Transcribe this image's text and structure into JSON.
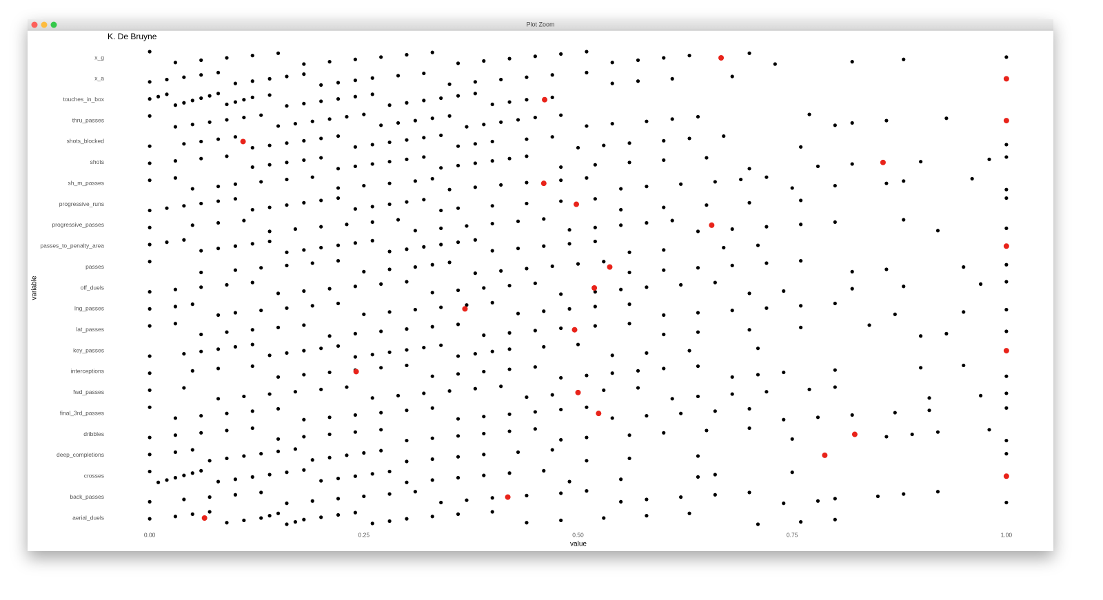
{
  "window_title": "Plot Zoom",
  "chart_data": {
    "type": "strip",
    "title": "K. De Bruyne",
    "x_label": "value",
    "y_label": "variable",
    "xlim": [
      -0.05,
      1.05
    ],
    "xticks": [
      {
        "value": 0,
        "label": "0.00"
      },
      {
        "value": 0.25,
        "label": "0.25"
      },
      {
        "value": 0.5,
        "label": "0.50"
      },
      {
        "value": 0.75,
        "label": "0.75"
      },
      {
        "value": 1,
        "label": "1.00"
      }
    ],
    "grid": false,
    "categories": [
      "x_g",
      "x_a",
      "touches_in_box",
      "thru_passes",
      "shots_blocked",
      "shots",
      "sh_m_passes",
      "progressive_runs",
      "progressive_passes",
      "passes_to_penalty_area",
      "passes",
      "off_duels",
      "lng_passes",
      "lat_passes",
      "key_passes",
      "interceptions",
      "fwd_passes",
      "final_3rd_passes",
      "dribbles",
      "deep_completions",
      "crosses",
      "back_passes",
      "aerial_duels"
    ],
    "population": {
      "color": "#000000",
      "values": [
        [
          0,
          0.03,
          0.06,
          0.09,
          0.12,
          0.15,
          0.18,
          0.21,
          0.24,
          0.27,
          0.3,
          0.33,
          0.36,
          0.39,
          0.42,
          0.45,
          0.48,
          0.51,
          0.54,
          0.57,
          0.6,
          0.63,
          0.7,
          0.73,
          0.82,
          0.88,
          1
        ],
        [
          0,
          0.02,
          0.04,
          0.06,
          0.08,
          0.1,
          0.12,
          0.14,
          0.16,
          0.18,
          0.2,
          0.22,
          0.24,
          0.26,
          0.29,
          0.32,
          0.35,
          0.38,
          0.41,
          0.44,
          0.47,
          0.51,
          0.54,
          0.57,
          0.61,
          0.68
        ],
        [
          0,
          0.01,
          0.02,
          0.03,
          0.04,
          0.05,
          0.06,
          0.07,
          0.08,
          0.09,
          0.1,
          0.11,
          0.12,
          0.14,
          0.16,
          0.18,
          0.2,
          0.22,
          0.24,
          0.26,
          0.28,
          0.3,
          0.32,
          0.34,
          0.36,
          0.38,
          0.4,
          0.42,
          0.44,
          0.47
        ],
        [
          0,
          0.03,
          0.05,
          0.07,
          0.09,
          0.11,
          0.13,
          0.15,
          0.17,
          0.19,
          0.21,
          0.23,
          0.25,
          0.27,
          0.29,
          0.31,
          0.33,
          0.35,
          0.37,
          0.39,
          0.41,
          0.43,
          0.45,
          0.48,
          0.51,
          0.54,
          0.58,
          0.61,
          0.64,
          0.77,
          0.8,
          0.82,
          0.86,
          0.93
        ],
        [
          0,
          0.04,
          0.06,
          0.08,
          0.1,
          0.12,
          0.14,
          0.16,
          0.18,
          0.2,
          0.22,
          0.24,
          0.26,
          0.28,
          0.3,
          0.32,
          0.34,
          0.36,
          0.38,
          0.4,
          0.44,
          0.47,
          0.5,
          0.53,
          0.56,
          0.6,
          0.63,
          0.67,
          0.76,
          1
        ],
        [
          0,
          0.03,
          0.06,
          0.09,
          0.12,
          0.14,
          0.16,
          0.18,
          0.2,
          0.22,
          0.24,
          0.26,
          0.28,
          0.3,
          0.32,
          0.34,
          0.36,
          0.38,
          0.4,
          0.42,
          0.44,
          0.48,
          0.52,
          0.56,
          0.6,
          0.65,
          0.7,
          0.78,
          0.82,
          0.9,
          0.98,
          1
        ],
        [
          0,
          0.03,
          0.05,
          0.08,
          0.1,
          0.13,
          0.16,
          0.19,
          0.22,
          0.25,
          0.28,
          0.31,
          0.33,
          0.35,
          0.38,
          0.41,
          0.44,
          0.48,
          0.51,
          0.55,
          0.58,
          0.62,
          0.66,
          0.69,
          0.72,
          0.75,
          0.8,
          0.86,
          0.88,
          0.96,
          1
        ],
        [
          0,
          0.02,
          0.04,
          0.06,
          0.08,
          0.1,
          0.12,
          0.14,
          0.16,
          0.18,
          0.2,
          0.22,
          0.24,
          0.26,
          0.28,
          0.3,
          0.32,
          0.34,
          0.36,
          0.4,
          0.44,
          0.48,
          0.52,
          0.55,
          0.6,
          0.65,
          0.7,
          0.76,
          1
        ],
        [
          0,
          0.05,
          0.08,
          0.11,
          0.14,
          0.17,
          0.2,
          0.23,
          0.26,
          0.29,
          0.31,
          0.34,
          0.37,
          0.4,
          0.43,
          0.46,
          0.49,
          0.52,
          0.55,
          0.58,
          0.61,
          0.64,
          0.68,
          0.72,
          0.76,
          0.8,
          0.88,
          0.92,
          1
        ],
        [
          0,
          0.02,
          0.04,
          0.06,
          0.08,
          0.1,
          0.12,
          0.14,
          0.16,
          0.18,
          0.2,
          0.22,
          0.24,
          0.26,
          0.28,
          0.3,
          0.32,
          0.34,
          0.36,
          0.38,
          0.4,
          0.43,
          0.46,
          0.49,
          0.52,
          0.56,
          0.6,
          0.67,
          0.71
        ],
        [
          0,
          0.06,
          0.1,
          0.13,
          0.16,
          0.19,
          0.22,
          0.25,
          0.28,
          0.31,
          0.33,
          0.35,
          0.38,
          0.41,
          0.44,
          0.47,
          0.5,
          0.53,
          0.56,
          0.6,
          0.64,
          0.68,
          0.72,
          0.76,
          0.82,
          0.86,
          0.95,
          1
        ],
        [
          0,
          0.03,
          0.06,
          0.09,
          0.12,
          0.15,
          0.18,
          0.21,
          0.24,
          0.27,
          0.3,
          0.33,
          0.36,
          0.39,
          0.42,
          0.45,
          0.48,
          0.52,
          0.55,
          0.58,
          0.62,
          0.66,
          0.7,
          0.74,
          0.82,
          0.88,
          0.97,
          1
        ],
        [
          0,
          0.03,
          0.05,
          0.08,
          0.1,
          0.13,
          0.16,
          0.19,
          0.22,
          0.25,
          0.28,
          0.31,
          0.34,
          0.37,
          0.4,
          0.43,
          0.46,
          0.49,
          0.52,
          0.56,
          0.6,
          0.64,
          0.68,
          0.72,
          0.76,
          0.8,
          0.87,
          0.95,
          1
        ],
        [
          0,
          0.03,
          0.06,
          0.09,
          0.12,
          0.15,
          0.18,
          0.21,
          0.24,
          0.27,
          0.3,
          0.33,
          0.36,
          0.39,
          0.42,
          0.45,
          0.48,
          0.52,
          0.56,
          0.6,
          0.64,
          0.7,
          0.76,
          0.84,
          0.9,
          0.93,
          1
        ],
        [
          0,
          0.04,
          0.06,
          0.08,
          0.1,
          0.12,
          0.14,
          0.16,
          0.18,
          0.2,
          0.22,
          0.24,
          0.26,
          0.28,
          0.3,
          0.32,
          0.34,
          0.36,
          0.38,
          0.4,
          0.42,
          0.46,
          0.5,
          0.54,
          0.58,
          0.63,
          0.71
        ],
        [
          0,
          0.05,
          0.08,
          0.12,
          0.15,
          0.18,
          0.21,
          0.24,
          0.27,
          0.3,
          0.33,
          0.36,
          0.39,
          0.42,
          0.45,
          0.48,
          0.51,
          0.54,
          0.57,
          0.6,
          0.64,
          0.68,
          0.71,
          0.74,
          0.8,
          0.9,
          0.95,
          1
        ],
        [
          0,
          0.04,
          0.08,
          0.11,
          0.14,
          0.17,
          0.2,
          0.23,
          0.26,
          0.29,
          0.32,
          0.35,
          0.38,
          0.41,
          0.44,
          0.47,
          0.5,
          0.53,
          0.57,
          0.61,
          0.64,
          0.68,
          0.72,
          0.77,
          0.8,
          0.91,
          0.97,
          1
        ],
        [
          0,
          0.03,
          0.06,
          0.09,
          0.12,
          0.15,
          0.18,
          0.21,
          0.24,
          0.27,
          0.3,
          0.33,
          0.36,
          0.39,
          0.42,
          0.45,
          0.48,
          0.51,
          0.54,
          0.58,
          0.62,
          0.66,
          0.7,
          0.74,
          0.78,
          0.82,
          0.87,
          0.91,
          1
        ],
        [
          0,
          0.03,
          0.06,
          0.09,
          0.12,
          0.15,
          0.18,
          0.21,
          0.24,
          0.27,
          0.3,
          0.33,
          0.36,
          0.39,
          0.42,
          0.45,
          0.48,
          0.51,
          0.56,
          0.6,
          0.65,
          0.7,
          0.75,
          0.86,
          0.89,
          0.92,
          0.98,
          1
        ],
        [
          0,
          0.03,
          0.05,
          0.07,
          0.09,
          0.11,
          0.13,
          0.15,
          0.17,
          0.19,
          0.21,
          0.23,
          0.25,
          0.27,
          0.3,
          0.33,
          0.36,
          0.39,
          0.43,
          0.47,
          0.51,
          0.56,
          0.64,
          1
        ],
        [
          0,
          0.01,
          0.02,
          0.03,
          0.04,
          0.05,
          0.06,
          0.08,
          0.1,
          0.12,
          0.14,
          0.16,
          0.18,
          0.2,
          0.22,
          0.24,
          0.26,
          0.28,
          0.3,
          0.33,
          0.36,
          0.39,
          0.42,
          0.46,
          0.49,
          0.55,
          0.64,
          0.66,
          0.75
        ],
        [
          0,
          0.04,
          0.07,
          0.1,
          0.13,
          0.16,
          0.19,
          0.22,
          0.25,
          0.28,
          0.31,
          0.34,
          0.37,
          0.4,
          0.44,
          0.48,
          0.51,
          0.55,
          0.58,
          0.62,
          0.66,
          0.7,
          0.74,
          0.78,
          0.8,
          0.85,
          0.88,
          0.92,
          1
        ],
        [
          0,
          0.03,
          0.05,
          0.07,
          0.09,
          0.11,
          0.13,
          0.14,
          0.15,
          0.16,
          0.17,
          0.18,
          0.2,
          0.22,
          0.24,
          0.26,
          0.28,
          0.3,
          0.33,
          0.36,
          0.4,
          0.44,
          0.48,
          0.53,
          0.58,
          0.63,
          0.71,
          0.76,
          0.8
        ]
      ]
    },
    "highlight": {
      "color": "#e8231a",
      "values": [
        0.667,
        1,
        0.461,
        1,
        0.109,
        0.856,
        0.46,
        0.498,
        0.656,
        1,
        0.537,
        0.519,
        0.368,
        0.496,
        1,
        0.241,
        0.5,
        0.524,
        0.823,
        0.788,
        1,
        0.418,
        0.064
      ]
    }
  }
}
